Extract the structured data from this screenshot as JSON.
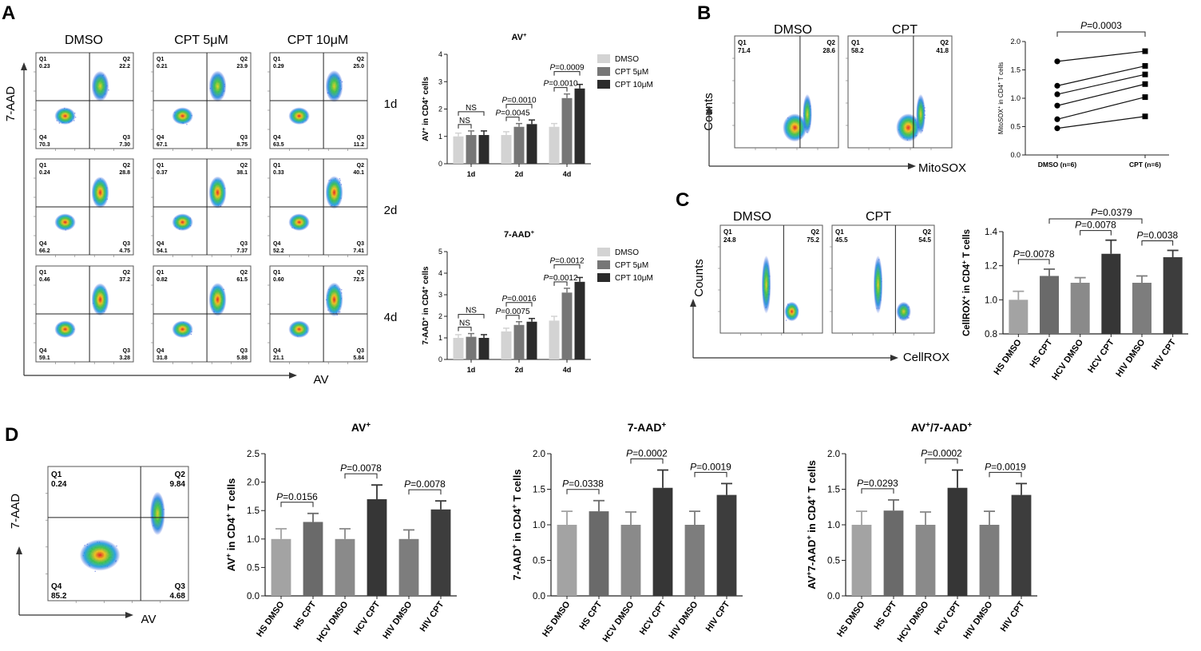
{
  "colors": {
    "light": "#d3d3d3",
    "mid": "#767676",
    "dark": "#2b2b2b",
    "grey1": "#a3a3a3",
    "grey2": "#6a6a6a",
    "grey3": "#8a8a8a",
    "grey4": "#363636",
    "grey5": "#7d7d7d",
    "grey6": "#3d3d3d"
  },
  "panel_labels": [
    "A",
    "B",
    "C",
    "D"
  ],
  "panelA": {
    "col_titles": [
      "DMSO",
      "CPT 5μM",
      "CPT 10μM"
    ],
    "row_labels": [
      "1d",
      "2d",
      "4d"
    ],
    "y_axis": "7-AAD",
    "x_axis": "AV",
    "plots": [
      [
        {
          "q1": "0.23",
          "q2": "22.2",
          "q3": "7.30",
          "q4": "70.3"
        },
        {
          "q1": "0.21",
          "q2": "23.9",
          "q3": "8.75",
          "q4": "67.1"
        },
        {
          "q1": "0.29",
          "q2": "25.0",
          "q3": "11.2",
          "q4": "63.5"
        }
      ],
      [
        {
          "q1": "0.24",
          "q2": "28.8",
          "q3": "4.75",
          "q4": "66.2"
        },
        {
          "q1": "0.37",
          "q2": "38.1",
          "q3": "7.37",
          "q4": "54.1"
        },
        {
          "q1": "0.33",
          "q2": "40.1",
          "q3": "7.41",
          "q4": "52.2"
        }
      ],
      [
        {
          "q1": "0.46",
          "q2": "37.2",
          "q3": "3.28",
          "q4": "59.1"
        },
        {
          "q1": "0.82",
          "q2": "61.5",
          "q3": "5.88",
          "q4": "31.8"
        },
        {
          "q1": "0.60",
          "q2": "72.5",
          "q3": "5.84",
          "q4": "21.1"
        }
      ]
    ]
  },
  "panelB": {
    "titles": [
      "DMSO",
      "CPT"
    ],
    "y_axis": "Counts",
    "x_axis": "MitoSOX",
    "plots": [
      {
        "q1": "71.4",
        "q2": "28.6"
      },
      {
        "q1": "58.2",
        "q2": "41.8"
      }
    ]
  },
  "panelC": {
    "titles": [
      "DMSO",
      "CPT"
    ],
    "y_axis": "Counts",
    "x_axis": "CellROX",
    "plots": [
      {
        "q1": "24.8",
        "q2": "75.2"
      },
      {
        "q1": "45.5",
        "q2": "54.5"
      }
    ]
  },
  "panelD": {
    "y_axis": "7-AAD",
    "x_axis": "AV",
    "plot": {
      "q1": "0.24",
      "q2": "9.84",
      "q3": "4.68",
      "q4": "85.2"
    }
  },
  "chart_data": [
    {
      "id": "A_AV",
      "type": "bar",
      "title": "AV+",
      "ylabel": "AV+ in CD4+ cells",
      "ylim": [
        0,
        4
      ],
      "yticks": [
        0,
        1,
        2,
        3,
        4
      ],
      "categories": [
        "1d",
        "2d",
        "4d"
      ],
      "series": [
        {
          "name": "DMSO",
          "values": [
            1.0,
            1.05,
            1.35
          ],
          "errors": [
            0.12,
            0.12,
            0.12
          ]
        },
        {
          "name": "CPT 5μM",
          "values": [
            1.05,
            1.35,
            2.4
          ],
          "errors": [
            0.15,
            0.12,
            0.15
          ]
        },
        {
          "name": "CPT 10μM",
          "values": [
            1.05,
            1.45,
            2.75
          ],
          "errors": [
            0.15,
            0.15,
            0.15
          ]
        }
      ],
      "annotations": [
        "NS",
        "NS",
        "P=0.0045",
        "P=0.0010",
        "P=0.0010",
        "P=0.0009"
      ]
    },
    {
      "id": "A_7AAD",
      "type": "bar",
      "title": "7-AAD+",
      "ylabel": "7-AAD+ in CD4+ cells",
      "ylim": [
        0,
        5
      ],
      "yticks": [
        0,
        1,
        2,
        3,
        4,
        5
      ],
      "categories": [
        "1d",
        "2d",
        "4d"
      ],
      "series": [
        {
          "name": "DMSO",
          "values": [
            1.0,
            1.3,
            1.8
          ],
          "errors": [
            0.15,
            0.15,
            0.2
          ]
        },
        {
          "name": "CPT 5μM",
          "values": [
            1.05,
            1.6,
            3.1
          ],
          "errors": [
            0.15,
            0.15,
            0.2
          ]
        },
        {
          "name": "CPT 10μM",
          "values": [
            1.0,
            1.75,
            3.6
          ],
          "errors": [
            0.15,
            0.15,
            0.2
          ]
        }
      ],
      "annotations": [
        "NS",
        "NS",
        "P=0.0075",
        "P=0.0016",
        "P=0.0012",
        "P=0.0012"
      ]
    },
    {
      "id": "B_line",
      "type": "line",
      "title": "",
      "ylabel": "MitoSOX+ in CD4+ T cells",
      "ylim": [
        0,
        2.0
      ],
      "yticks": [
        "0.0",
        "0.5",
        "1.0",
        "1.5",
        "2.0"
      ],
      "categories": [
        "DMSO (n=6)",
        "CPT (n=6)"
      ],
      "pairs": [
        [
          1.65,
          1.83
        ],
        [
          1.22,
          1.57
        ],
        [
          1.07,
          1.42
        ],
        [
          0.87,
          1.25
        ],
        [
          0.63,
          1.02
        ],
        [
          0.47,
          0.68
        ]
      ],
      "annotation": "P=0.0003"
    },
    {
      "id": "C_bar",
      "type": "bar",
      "title": "",
      "ylabel": "CellROX+ in CD4+ T cells",
      "ylim": [
        0.8,
        1.4
      ],
      "yticks": [
        "0.8",
        "1.0",
        "1.2",
        "1.4"
      ],
      "categories": [
        "HS DMSO",
        "HS CPT",
        "HCV DMSO",
        "HCV CPT",
        "HIV DMSO",
        "HIV CPT"
      ],
      "values": [
        1.0,
        1.14,
        1.1,
        1.27,
        1.1,
        1.25
      ],
      "errors": [
        0.05,
        0.04,
        0.03,
        0.08,
        0.04,
        0.04
      ],
      "annotations": [
        "P=0.0078",
        "P=0.0078",
        "P=0.0038",
        "P=0.0379"
      ]
    },
    {
      "id": "D_AV",
      "type": "bar",
      "title": "AV+",
      "ylabel": "AV+ in CD4+ T cells",
      "ylim": [
        0,
        2.5
      ],
      "yticks": [
        "0.0",
        "0.5",
        "1.0",
        "1.5",
        "2.0",
        "2.5"
      ],
      "categories": [
        "HS DMSO",
        "HS CPT",
        "HCV DMSO",
        "HCV CPT",
        "HIV DMSO",
        "HIV CPT"
      ],
      "values": [
        1.0,
        1.3,
        1.0,
        1.7,
        1.0,
        1.52
      ],
      "errors": [
        0.18,
        0.15,
        0.18,
        0.25,
        0.16,
        0.15
      ],
      "annotations": [
        "P=0.0156",
        "P=0.0078",
        "P=0.0078"
      ]
    },
    {
      "id": "D_7AAD",
      "type": "bar",
      "title": "7-AAD+",
      "ylabel": "7-AAD+ in CD4+ T cells",
      "ylim": [
        0,
        2.0
      ],
      "yticks": [
        "0.0",
        "0.5",
        "1.0",
        "1.5",
        "2.0"
      ],
      "categories": [
        "HS DMSO",
        "HS CPT",
        "HCV DMSO",
        "HCV CPT",
        "HIV DMSO",
        "HIV CPT"
      ],
      "values": [
        1.0,
        1.19,
        1.0,
        1.52,
        1.0,
        1.42
      ],
      "errors": [
        0.19,
        0.15,
        0.18,
        0.25,
        0.19,
        0.16
      ],
      "annotations": [
        "P=0.0338",
        "P=0.0002",
        "P=0.0019"
      ]
    },
    {
      "id": "D_AV7AAD",
      "type": "bar",
      "title": "AV+/7-AAD+",
      "ylabel": "AV+7-AAD+ in CD4+ T cells",
      "ylim": [
        0,
        2.0
      ],
      "yticks": [
        "0.0",
        "0.5",
        "1.0",
        "1.5",
        "2.0"
      ],
      "categories": [
        "HS DMSO",
        "HS CPT",
        "HCV DMSO",
        "HCV CPT",
        "HIV DMSO",
        "HIV CPT"
      ],
      "values": [
        1.0,
        1.2,
        1.0,
        1.52,
        1.0,
        1.42
      ],
      "errors": [
        0.19,
        0.15,
        0.18,
        0.25,
        0.19,
        0.16
      ],
      "annotations": [
        "P=0.0293",
        "P=0.0002",
        "P=0.0019"
      ]
    }
  ]
}
